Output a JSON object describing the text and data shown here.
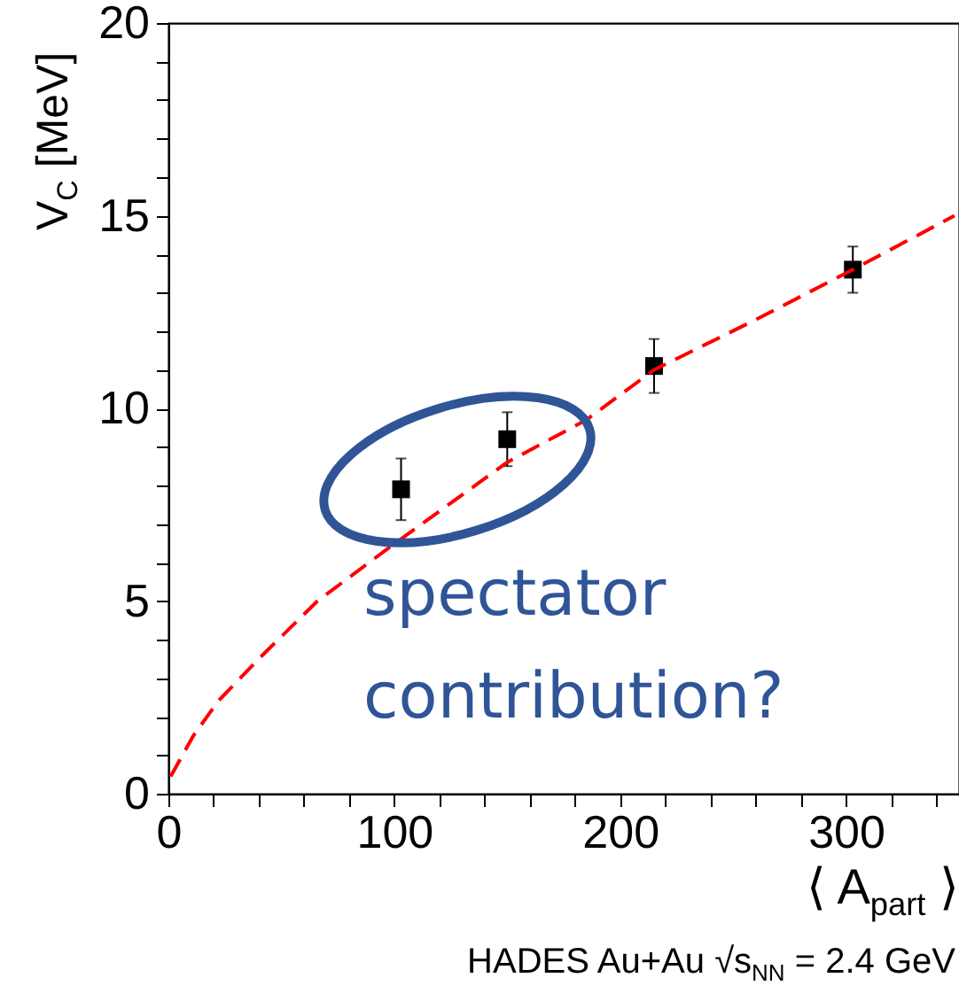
{
  "chart_data": {
    "type": "scatter",
    "xlabel": "⟨ A$_{part}$ ⟩",
    "ylabel": "V$_{C}$ [MeV]",
    "annotations": [
      "spectator contribution?",
      "HADES  Au+Au  √s$_{NN}$ = 2.4 GeV"
    ],
    "x": [
      103,
      150,
      215,
      303
    ],
    "series": [
      {
        "color": "#000000",
        "marker": "square",
        "values": [
          7.9,
          9.2,
          11.1,
          13.6
        ],
        "errors": [
          0.8,
          0.7,
          0.7,
          0.6
        ]
      },
      {
        "type": "line",
        "color": "#ff0000",
        "line_style": "dashed",
        "x": [
          1,
          11,
          22,
          40,
          66,
          98,
          150,
          185,
          215,
          260,
          303,
          348
        ],
        "values": [
          0.45,
          1.5,
          2.4,
          3.5,
          5.0,
          6.4,
          8.6,
          9.7,
          11.0,
          12.3,
          13.6,
          15.0
        ]
      }
    ],
    "xlim": [
      0,
      350
    ],
    "ylim": [
      0,
      20
    ],
    "xticks": [
      0,
      {
        "value": 20,
        "label": null
      },
      {
        "value": 40,
        "label": null
      },
      {
        "value": 60,
        "label": null
      },
      {
        "value": 80,
        "label": null
      },
      100,
      {
        "value": 120,
        "label": null
      },
      {
        "value": 140,
        "label": null
      },
      {
        "value": 160,
        "label": null
      },
      {
        "value": 180,
        "label": null
      },
      200,
      {
        "value": 220,
        "label": null
      },
      {
        "value": 240,
        "label": null
      },
      {
        "value": 260,
        "label": null
      },
      {
        "value": 280,
        "label": null
      },
      300,
      {
        "value": 320,
        "label": null
      },
      {
        "value": 340,
        "label": null
      }
    ],
    "yticks": [
      0,
      {
        "value": 1,
        "label": null
      },
      {
        "value": 2,
        "label": null
      },
      {
        "value": 3,
        "label": null
      },
      {
        "value": 4,
        "label": null
      },
      5,
      {
        "value": 6,
        "label": null
      },
      {
        "value": 7,
        "label": null
      },
      {
        "value": 8,
        "label": null
      },
      {
        "value": 9,
        "label": null
      },
      10,
      {
        "value": 11,
        "label": null
      },
      {
        "value": 12,
        "label": null
      },
      {
        "value": 13,
        "label": null
      },
      {
        "value": 14,
        "label": null
      },
      15,
      {
        "value": 16,
        "label": null
      },
      {
        "value": 17,
        "label": null
      },
      {
        "value": 18,
        "label": null
      },
      {
        "value": 19,
        "label": null
      },
      20
    ]
  }
}
